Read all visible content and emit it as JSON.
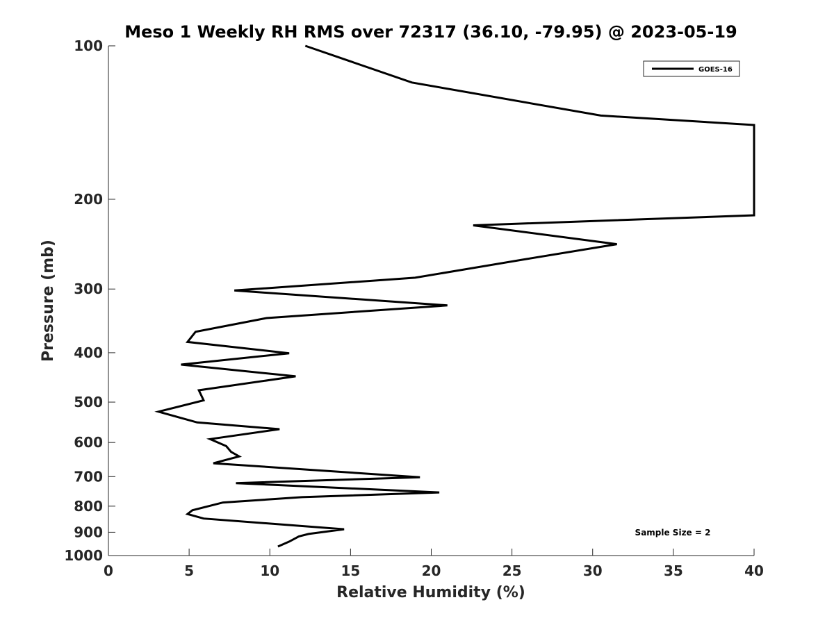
{
  "chart_data": {
    "type": "line",
    "title": "Meso 1 Weekly RH RMS over 72317 (36.10, -79.95) @ 2023-05-19",
    "xlabel": "Relative Humidity (%)",
    "ylabel": "Pressure (mb)",
    "xlim": [
      0,
      40
    ],
    "ylim": [
      100,
      1000
    ],
    "y_scale": "log",
    "y_reversed": true,
    "xticks": [
      0,
      5,
      10,
      15,
      20,
      25,
      30,
      35,
      40
    ],
    "xtick_labels": [
      "0",
      "5",
      "10",
      "15",
      "20",
      "25",
      "30",
      "35",
      "40"
    ],
    "yticks": [
      100,
      200,
      300,
      400,
      500,
      600,
      700,
      800,
      900,
      1000
    ],
    "ytick_labels": [
      "100",
      "200",
      "300",
      "400",
      "500",
      "600",
      "700",
      "800",
      "900",
      "1000"
    ],
    "grid": false,
    "legend": {
      "position": "top-right",
      "entries": [
        "GOES-16"
      ]
    },
    "annotation": "Sample Size = 2",
    "series": [
      {
        "name": "GOES-16",
        "color": "#000000",
        "points": [
          [
            12.2,
            100
          ],
          [
            18.8,
            118
          ],
          [
            30.5,
            137
          ],
          [
            40,
            143
          ],
          [
            40,
            215
          ],
          [
            22.6,
            225
          ],
          [
            31.5,
            245
          ],
          [
            25.9,
            262
          ],
          [
            19.0,
            285
          ],
          [
            7.8,
            302
          ],
          [
            21.0,
            323
          ],
          [
            9.8,
            342
          ],
          [
            5.4,
            364
          ],
          [
            4.9,
            381
          ],
          [
            11.2,
            401
          ],
          [
            4.5,
            422
          ],
          [
            11.6,
            445
          ],
          [
            5.6,
            474
          ],
          [
            5.9,
            496
          ],
          [
            3.1,
            522
          ],
          [
            5.5,
            548
          ],
          [
            10.6,
            565
          ],
          [
            6.3,
            591
          ],
          [
            7.3,
            610
          ],
          [
            7.6,
            626
          ],
          [
            8.1,
            639
          ],
          [
            6.5,
            659
          ],
          [
            19.3,
            702
          ],
          [
            7.9,
            721
          ],
          [
            20.5,
            752
          ],
          [
            12.0,
            768
          ],
          [
            7.1,
            787
          ],
          [
            5.2,
            815
          ],
          [
            4.9,
            829
          ],
          [
            5.9,
            846
          ],
          [
            14.6,
            888
          ],
          [
            12.4,
            907
          ],
          [
            11.8,
            917
          ],
          [
            11.2,
            939
          ],
          [
            10.5,
            960
          ]
        ]
      }
    ]
  }
}
